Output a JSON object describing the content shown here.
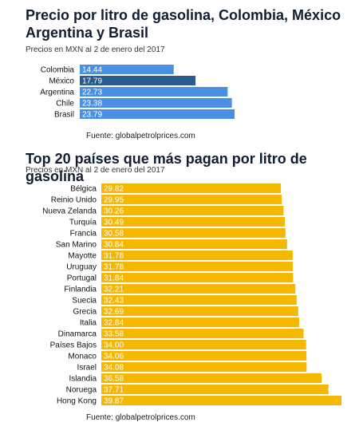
{
  "chart_data": [
    {
      "type": "bar",
      "orientation": "horizontal",
      "title": "Precio por litro de gasolina, Colombia, México Argentina y Brasil",
      "subtitle": "Precios en MXN al 2 de enero del 2017",
      "source": "Fuente: globalpetrolprices.com",
      "categories": [
        "Colombia",
        "México",
        "Argentina",
        "Chile",
        "Brasil"
      ],
      "values": [
        14.44,
        17.79,
        22.73,
        23.38,
        23.79
      ],
      "value_labels": [
        "14.44",
        "17.79",
        "22.73",
        "23.38",
        "23.79"
      ],
      "colors": [
        "#4a90e2",
        "#2b5a8c",
        "#4a90e2",
        "#4a90e2",
        "#4a90e2"
      ],
      "highlight": "México",
      "xlim": [
        0,
        23.79
      ]
    },
    {
      "type": "bar",
      "orientation": "horizontal",
      "title": "Top 20 países que más pagan por litro de gasolina",
      "subtitle": "Precios en MXN al 2 de enero del 2017",
      "source": "Fuente: globalpetrolprices.com",
      "categories": [
        "Bélgica",
        "Reinio Unido",
        "Nueva Zelanda",
        "Turquía",
        "Francia",
        "San Marino",
        "Mayotte",
        "Uruguay",
        "Portugal",
        "Finlandia",
        "Suecia",
        "Grecia",
        "Italia",
        "Dinamarca",
        "Países Bajos",
        "Monaco",
        "Israel",
        "Islandia",
        "Noruega",
        "Hong Kong"
      ],
      "values": [
        29.82,
        29.95,
        30.26,
        30.49,
        30.58,
        30.84,
        31.78,
        31.78,
        31.84,
        32.21,
        32.43,
        32.69,
        32.84,
        33.58,
        34.0,
        34.06,
        34.08,
        36.58,
        37.71,
        39.87
      ],
      "value_labels": [
        "29.82",
        "29.95",
        "30.26",
        "30.49",
        "30.58",
        "30.84",
        "31.78",
        "31.78",
        "31.84",
        "32.21",
        "32.43",
        "32.69",
        "32.84",
        "33.58",
        "34.00",
        "34.06",
        "34.08",
        "36.58",
        "37.71",
        "39.87"
      ],
      "colors": [
        "#f5b800"
      ],
      "xlim": [
        0,
        39.87
      ]
    }
  ]
}
